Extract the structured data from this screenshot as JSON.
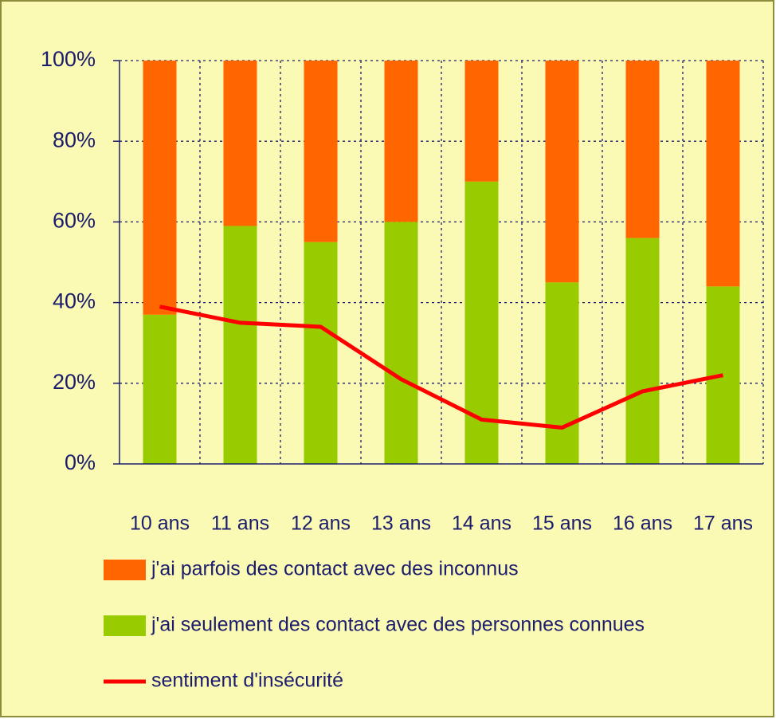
{
  "chart_data": {
    "type": "bar",
    "stacked": true,
    "categories": [
      "10 ans",
      "11 ans",
      "12 ans",
      "13 ans",
      "14 ans",
      "15 ans",
      "16 ans",
      "17 ans"
    ],
    "series": [
      {
        "name": "j'ai parfois des contact avec des inconnus",
        "color": "#ff6600",
        "values": [
          63,
          41,
          45,
          40,
          30,
          55,
          44,
          56
        ]
      },
      {
        "name": "j'ai seulement des contact avec des personnes connues",
        "color": "#99cc00",
        "values": [
          37,
          59,
          55,
          60,
          70,
          45,
          56,
          44
        ]
      },
      {
        "name": "sentiment d'insécurité",
        "color": "#ff0000",
        "type": "line",
        "values": [
          39,
          35,
          34,
          21,
          11,
          9,
          18,
          22
        ]
      }
    ],
    "ylim": [
      0,
      100
    ],
    "yticks": [
      {
        "value": 0,
        "label": "0%"
      },
      {
        "value": 20,
        "label": "20%"
      },
      {
        "value": 40,
        "label": "40%"
      },
      {
        "value": 60,
        "label": "60%"
      },
      {
        "value": 80,
        "label": "80%"
      },
      {
        "value": 100,
        "label": "100%"
      }
    ],
    "grid": true
  }
}
